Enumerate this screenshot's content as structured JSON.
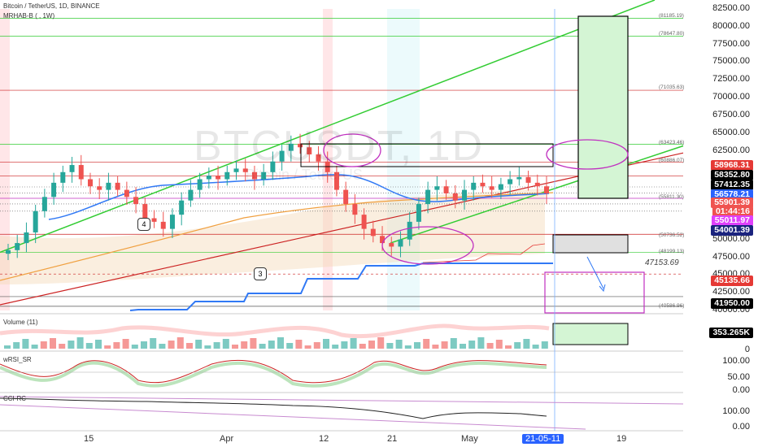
{
  "header": {
    "symbol_line": "Bitcoin / TetherUS, 1D, BINANCE",
    "indicator_line": "MRHAB-B ( , 1W)"
  },
  "watermark": {
    "symbol": "BTCUSDT, 1D",
    "name": "Bitcoin / TetherUS"
  },
  "price_axis": {
    "ticks": [
      "82500.00",
      "80000.00",
      "77500.00",
      "75000.00",
      "72500.00",
      "70000.00",
      "67500.00",
      "65000.00",
      "62500.00",
      "60000.00",
      "57500.00",
      "55000.00",
      "50000.00",
      "47500.00",
      "45000.00",
      "42500.00",
      "40000.00"
    ],
    "labels_tags": [
      {
        "text": "58968.31",
        "bg": "#e53935",
        "fg": "#ffffff"
      },
      {
        "text": "58352.80",
        "bg": "#000000",
        "fg": "#ffffff"
      },
      {
        "text": "57412.35",
        "bg": "#000000",
        "fg": "#ffffff"
      },
      {
        "text": "56578.21",
        "bg": "#2962ff",
        "fg": "#ffffff"
      },
      {
        "text": "55901.39",
        "bg": "#ef5350",
        "fg": "#ffffff"
      },
      {
        "text": "01:44:16",
        "bg": "#ef5350",
        "fg": "#ffffff"
      },
      {
        "text": "55011.97",
        "bg": "#e040fb",
        "fg": "#ffffff"
      },
      {
        "text": "54001.39",
        "bg": "#1a237e",
        "fg": "#ffffff"
      },
      {
        "text": "45135.66",
        "bg": "#e53935",
        "fg": "#ffffff"
      },
      {
        "text": "41950.00",
        "bg": "#000000",
        "fg": "#ffffff"
      }
    ]
  },
  "levels": [
    "(81185.19)",
    "(78647.80)",
    "(71035.63)",
    "(63423.46)",
    "(60886.07)",
    "(55811.30)",
    "(50736.52)",
    "(48199.13)",
    "47153.69",
    "(40586.96)"
  ],
  "pivot_labels": [
    "4",
    "3"
  ],
  "volume": {
    "title": "Volume (11)",
    "value_tag": "353.265K",
    "zero": "0"
  },
  "wrsi": {
    "title": "wRSI_SR",
    "ticks": [
      "100.00",
      "50.00",
      "0.00"
    ]
  },
  "cci": {
    "title": "CCI-RC",
    "ticks": [
      "100.00",
      "0.00"
    ]
  },
  "time_axis": {
    "labels": [
      "15",
      "Apr",
      "12",
      "21",
      "May",
      "21-05-11",
      "19"
    ]
  },
  "colors": {
    "bull": "#26a69a",
    "bear": "#ef5350",
    "green_line": "#33cc33",
    "red_line": "#cc2222",
    "blue_line": "#3179f5",
    "magenta": "#c030c0"
  }
}
